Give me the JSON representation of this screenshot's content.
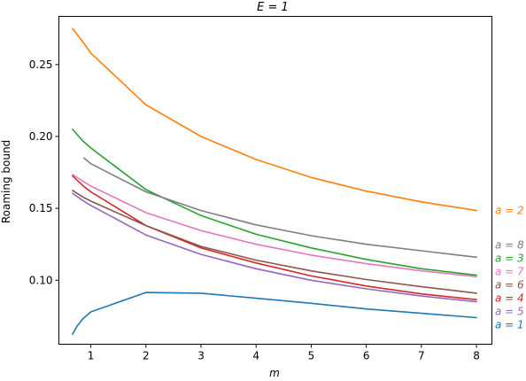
{
  "chart_data": {
    "type": "line",
    "title": "E = 1",
    "xlabel": "m",
    "ylabel": "Roaming bound",
    "xlim": [
      0.42,
      8.28
    ],
    "ylim": [
      0.0555,
      0.2835
    ],
    "xticks": [
      1,
      2,
      3,
      4,
      5,
      6,
      7,
      8
    ],
    "yticks": [
      0.1,
      0.15,
      0.2,
      0.25
    ],
    "ytick_labels": [
      "0.10",
      "0.15",
      "0.20",
      "0.25"
    ],
    "grid": false,
    "legend": "right-of-plot, labels at line ends",
    "series": [
      {
        "name": "a = 1",
        "color": "#1f77b4",
        "x": [
          0.667,
          0.75,
          0.85,
          1,
          2,
          3,
          4,
          5,
          6,
          7,
          8
        ],
        "y": [
          0.0625,
          0.068,
          0.073,
          0.078,
          0.0915,
          0.091,
          0.0875,
          0.084,
          0.08,
          0.077,
          0.074
        ]
      },
      {
        "name": "a = 2",
        "color": "#ff7f0e",
        "x": [
          0.667,
          0.85,
          1,
          2,
          3,
          4,
          5,
          6,
          7,
          8
        ],
        "y": [
          0.275,
          0.266,
          0.258,
          0.222,
          0.2,
          0.184,
          0.1715,
          0.162,
          0.1545,
          0.1485
        ]
      },
      {
        "name": "a = 3",
        "color": "#2ca02c",
        "x": [
          0.667,
          0.85,
          1,
          2,
          3,
          4,
          5,
          6,
          7,
          8
        ],
        "y": [
          0.205,
          0.197,
          0.192,
          0.163,
          0.145,
          0.132,
          0.1225,
          0.1145,
          0.108,
          0.1035
        ]
      },
      {
        "name": "a = 4",
        "color": "#d62728",
        "x": [
          0.667,
          0.85,
          1,
          2,
          3,
          4,
          5,
          6,
          7,
          8
        ],
        "y": [
          0.1725,
          0.166,
          0.1615,
          0.138,
          0.1225,
          0.112,
          0.103,
          0.096,
          0.0905,
          0.0865
        ]
      },
      {
        "name": "a = 5",
        "color": "#9467bd",
        "x": [
          0.667,
          0.85,
          1,
          2,
          3,
          4,
          5,
          6,
          7,
          8
        ],
        "y": [
          0.1605,
          0.1555,
          0.152,
          0.1315,
          0.118,
          0.108,
          0.1,
          0.094,
          0.089,
          0.085
        ]
      },
      {
        "name": "a = 6",
        "color": "#8c564b",
        "x": [
          0.667,
          0.85,
          1,
          2,
          3,
          4,
          5,
          6,
          7,
          8
        ],
        "y": [
          0.1625,
          0.158,
          0.155,
          0.138,
          0.1235,
          0.114,
          0.1065,
          0.1005,
          0.0955,
          0.091
        ]
      },
      {
        "name": "a = 7",
        "color": "#e377c2",
        "x": [
          0.667,
          0.85,
          1,
          2,
          3,
          4,
          5,
          6,
          7,
          8
        ],
        "y": [
          0.1735,
          0.169,
          0.1655,
          0.147,
          0.1345,
          0.125,
          0.1175,
          0.1115,
          0.1065,
          0.1025
        ]
      },
      {
        "name": "a = 8",
        "color": "#7f7f7f",
        "x": [
          0.875,
          1,
          2,
          3,
          4,
          5,
          6,
          7,
          8
        ],
        "y": [
          0.185,
          0.181,
          0.1615,
          0.1485,
          0.1385,
          0.131,
          0.125,
          0.1205,
          0.116
        ]
      }
    ]
  }
}
